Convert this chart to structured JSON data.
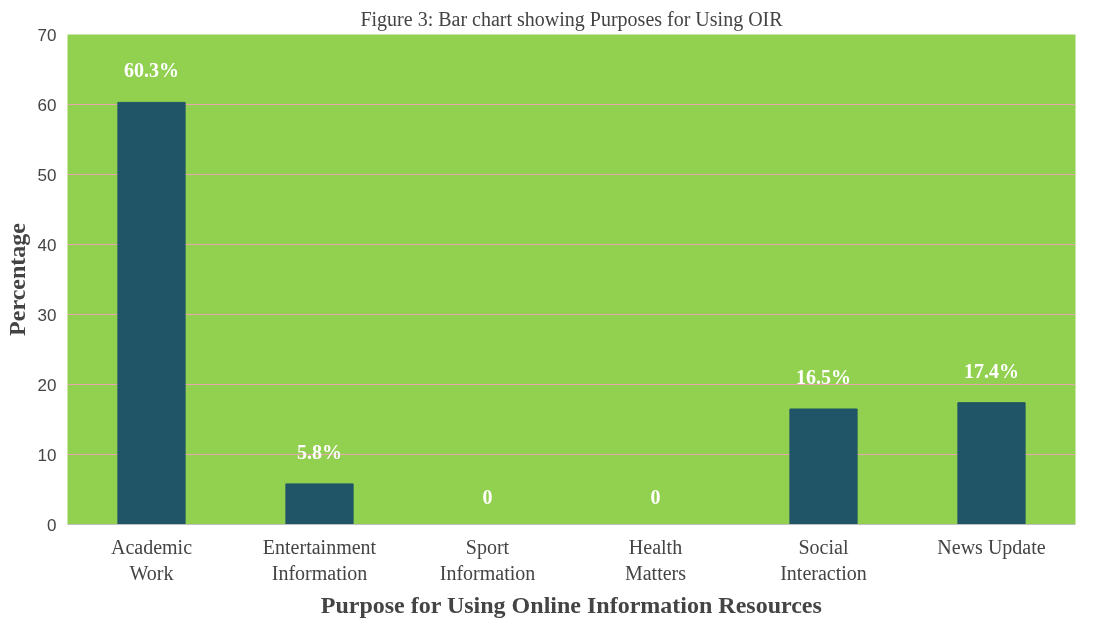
{
  "chart_data": {
    "type": "bar",
    "title": "Figure 3: Bar chart showing Purposes for Using OIR",
    "xlabel": "Purpose for Using Online Information Resources",
    "ylabel": "Percentage",
    "categories": [
      "Academic Work",
      "Entertainment Information",
      "Sport Information",
      "Health Matters",
      "Social Interaction",
      "News Update"
    ],
    "values": [
      60.3,
      5.8,
      0,
      0,
      16.5,
      17.4
    ],
    "value_labels": [
      "60.3%",
      "5.8%",
      "0",
      "0",
      "16.5%",
      "17.4%"
    ],
    "color": "#1f5566",
    "ylim": [
      0,
      70
    ],
    "yticks": [
      0,
      10,
      20,
      30,
      40,
      50,
      60,
      70
    ],
    "grid": "y"
  }
}
